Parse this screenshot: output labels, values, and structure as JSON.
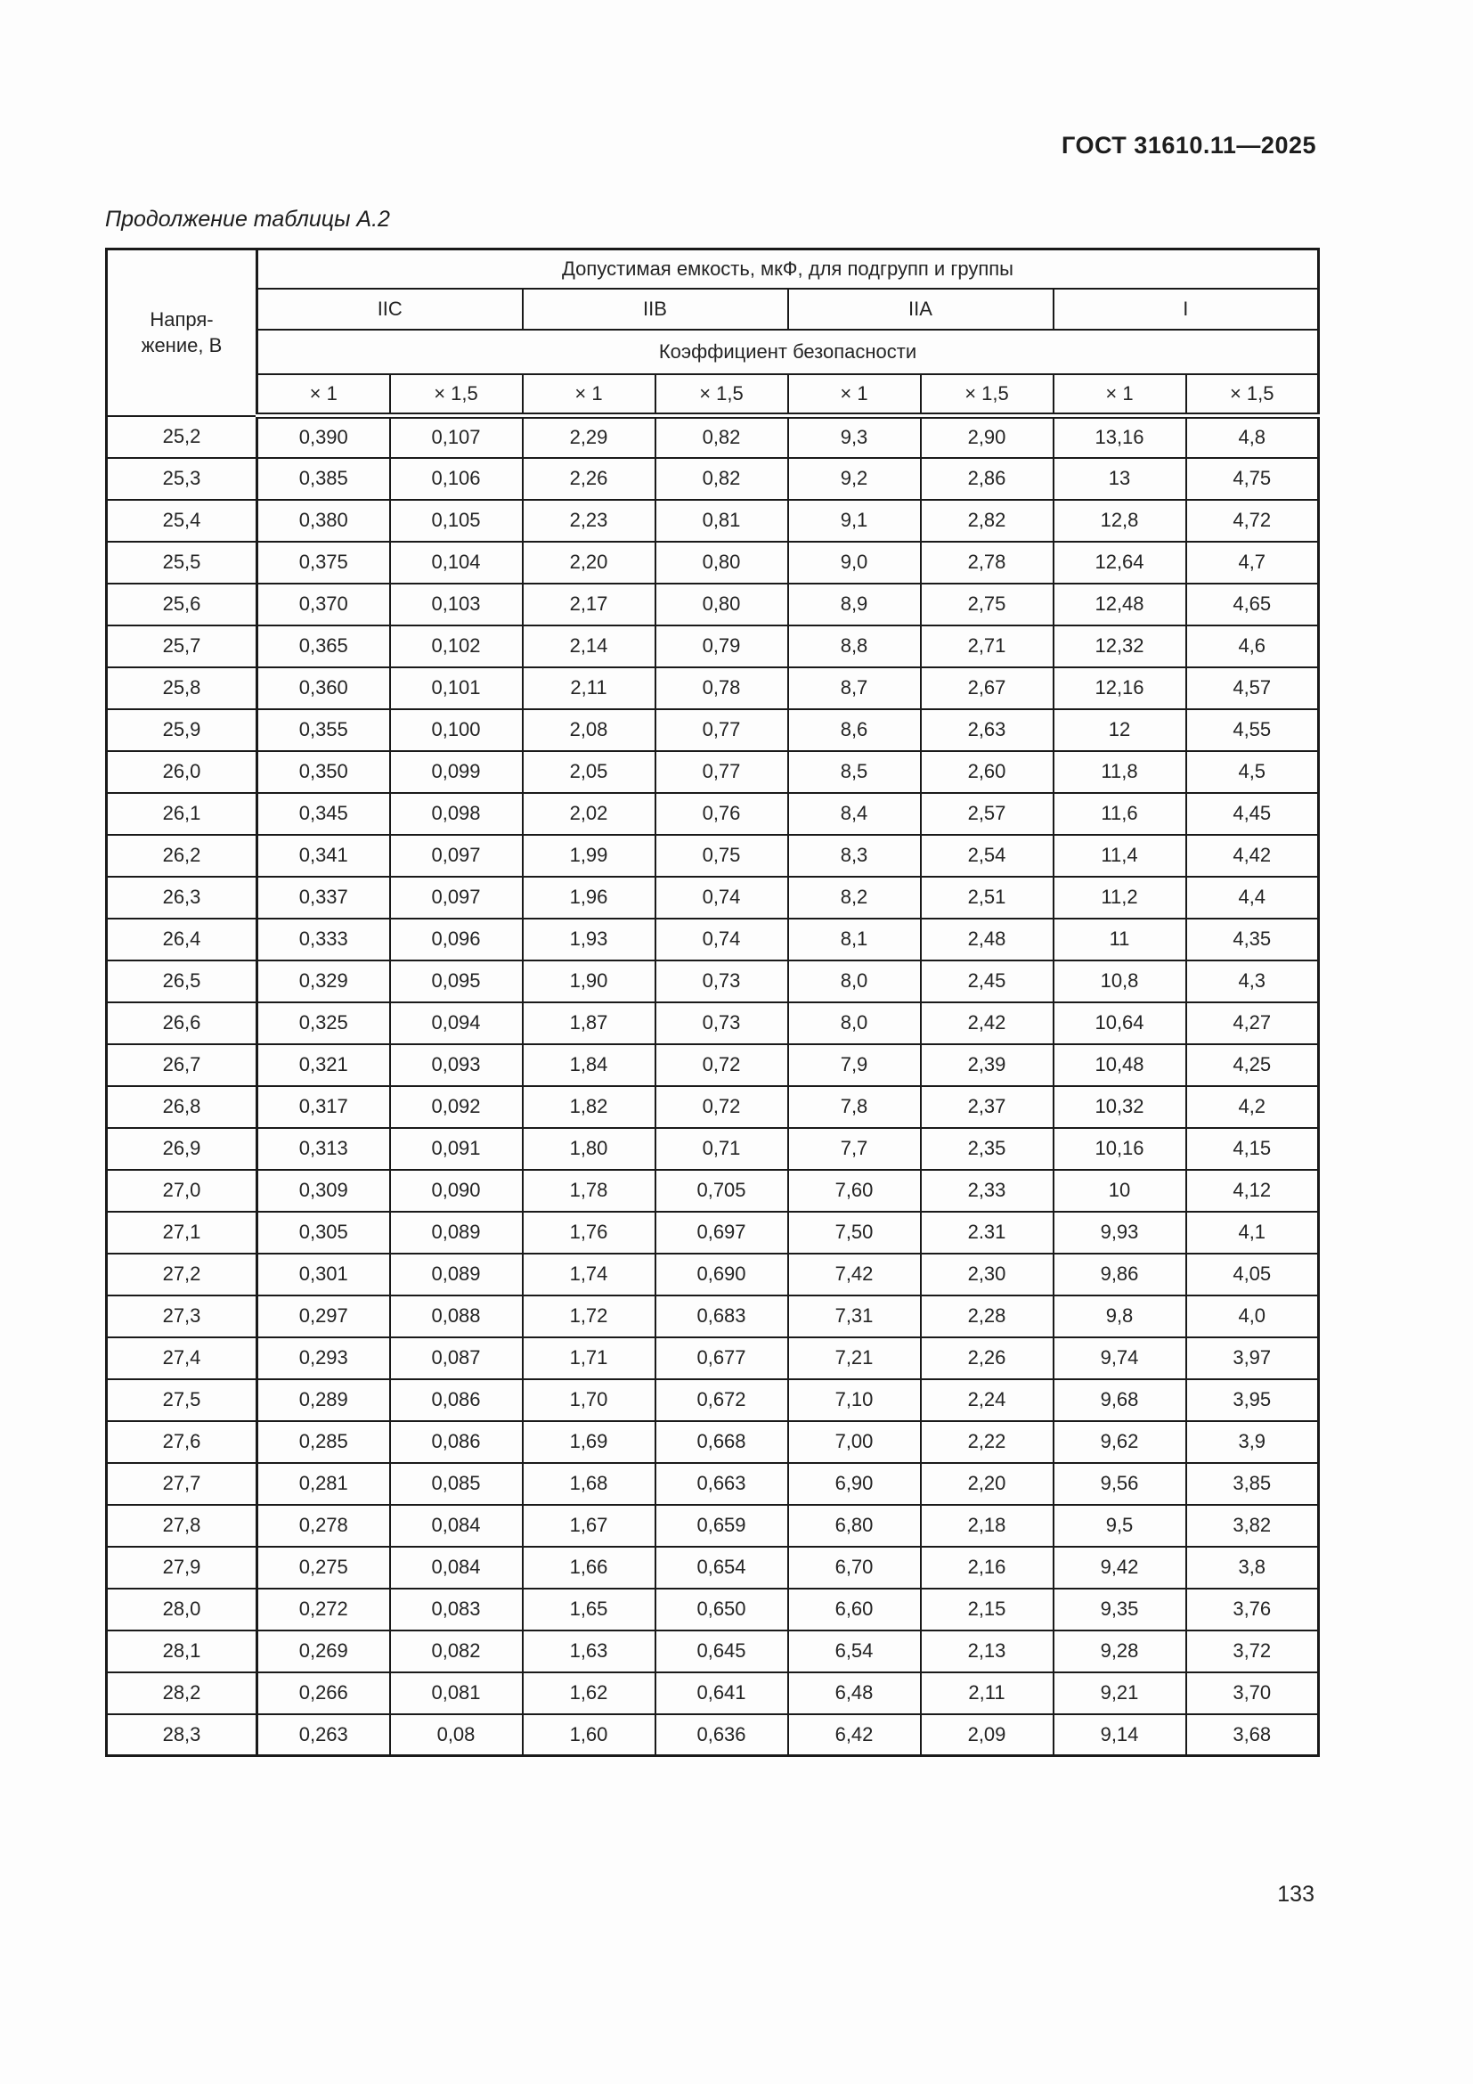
{
  "page": {
    "doc_code": "ГОСТ 31610.11—2025",
    "table_caption": "Продолжение таблицы А.2",
    "page_number": "133"
  },
  "table": {
    "voltage_header_lines": [
      "Напря-",
      "жение, В"
    ],
    "span_header": "Допустимая емкость, мкФ, для подгрупп и группы",
    "groups": [
      "IIC",
      "IIB",
      "IIA",
      "I"
    ],
    "coeff_header": "Коэффициент безопасности",
    "mult_headers": [
      "× 1",
      "× 1,5"
    ],
    "columns": [
      "Напряжение, В",
      "IIC × 1",
      "IIC × 1,5",
      "IIB × 1",
      "IIB × 1,5",
      "IIA × 1",
      "IIA × 1,5",
      "I × 1",
      "I × 1,5"
    ],
    "rows": [
      [
        "25,2",
        "0,390",
        "0,107",
        "2,29",
        "0,82",
        "9,3",
        "2,90",
        "13,16",
        "4,8"
      ],
      [
        "25,3",
        "0,385",
        "0,106",
        "2,26",
        "0,82",
        "9,2",
        "2,86",
        "13",
        "4,75"
      ],
      [
        "25,4",
        "0,380",
        "0,105",
        "2,23",
        "0,81",
        "9,1",
        "2,82",
        "12,8",
        "4,72"
      ],
      [
        "25,5",
        "0,375",
        "0,104",
        "2,20",
        "0,80",
        "9,0",
        "2,78",
        "12,64",
        "4,7"
      ],
      [
        "25,6",
        "0,370",
        "0,103",
        "2,17",
        "0,80",
        "8,9",
        "2,75",
        "12,48",
        "4,65"
      ],
      [
        "25,7",
        "0,365",
        "0,102",
        "2,14",
        "0,79",
        "8,8",
        "2,71",
        "12,32",
        "4,6"
      ],
      [
        "25,8",
        "0,360",
        "0,101",
        "2,11",
        "0,78",
        "8,7",
        "2,67",
        "12,16",
        "4,57"
      ],
      [
        "25,9",
        "0,355",
        "0,100",
        "2,08",
        "0,77",
        "8,6",
        "2,63",
        "12",
        "4,55"
      ],
      [
        "26,0",
        "0,350",
        "0,099",
        "2,05",
        "0,77",
        "8,5",
        "2,60",
        "11,8",
        "4,5"
      ],
      [
        "26,1",
        "0,345",
        "0,098",
        "2,02",
        "0,76",
        "8,4",
        "2,57",
        "11,6",
        "4,45"
      ],
      [
        "26,2",
        "0,341",
        "0,097",
        "1,99",
        "0,75",
        "8,3",
        "2,54",
        "11,4",
        "4,42"
      ],
      [
        "26,3",
        "0,337",
        "0,097",
        "1,96",
        "0,74",
        "8,2",
        "2,51",
        "11,2",
        "4,4"
      ],
      [
        "26,4",
        "0,333",
        "0,096",
        "1,93",
        "0,74",
        "8,1",
        "2,48",
        "11",
        "4,35"
      ],
      [
        "26,5",
        "0,329",
        "0,095",
        "1,90",
        "0,73",
        "8,0",
        "2,45",
        "10,8",
        "4,3"
      ],
      [
        "26,6",
        "0,325",
        "0,094",
        "1,87",
        "0,73",
        "8,0",
        "2,42",
        "10,64",
        "4,27"
      ],
      [
        "26,7",
        "0,321",
        "0,093",
        "1,84",
        "0,72",
        "7,9",
        "2,39",
        "10,48",
        "4,25"
      ],
      [
        "26,8",
        "0,317",
        "0,092",
        "1,82",
        "0,72",
        "7,8",
        "2,37",
        "10,32",
        "4,2"
      ],
      [
        "26,9",
        "0,313",
        "0,091",
        "1,80",
        "0,71",
        "7,7",
        "2,35",
        "10,16",
        "4,15"
      ],
      [
        "27,0",
        "0,309",
        "0,090",
        "1,78",
        "0,705",
        "7,60",
        "2,33",
        "10",
        "4,12"
      ],
      [
        "27,1",
        "0,305",
        "0,089",
        "1,76",
        "0,697",
        "7,50",
        "2.31",
        "9,93",
        "4,1"
      ],
      [
        "27,2",
        "0,301",
        "0,089",
        "1,74",
        "0,690",
        "7,42",
        "2,30",
        "9,86",
        "4,05"
      ],
      [
        "27,3",
        "0,297",
        "0,088",
        "1,72",
        "0,683",
        "7,31",
        "2,28",
        "9,8",
        "4,0"
      ],
      [
        "27,4",
        "0,293",
        "0,087",
        "1,71",
        "0,677",
        "7,21",
        "2,26",
        "9,74",
        "3,97"
      ],
      [
        "27,5",
        "0,289",
        "0,086",
        "1,70",
        "0,672",
        "7,10",
        "2,24",
        "9,68",
        "3,95"
      ],
      [
        "27,6",
        "0,285",
        "0,086",
        "1,69",
        "0,668",
        "7,00",
        "2,22",
        "9,62",
        "3,9"
      ],
      [
        "27,7",
        "0,281",
        "0,085",
        "1,68",
        "0,663",
        "6,90",
        "2,20",
        "9,56",
        "3,85"
      ],
      [
        "27,8",
        "0,278",
        "0,084",
        "1,67",
        "0,659",
        "6,80",
        "2,18",
        "9,5",
        "3,82"
      ],
      [
        "27,9",
        "0,275",
        "0,084",
        "1,66",
        "0,654",
        "6,70",
        "2,16",
        "9,42",
        "3,8"
      ],
      [
        "28,0",
        "0,272",
        "0,083",
        "1,65",
        "0,650",
        "6,60",
        "2,15",
        "9,35",
        "3,76"
      ],
      [
        "28,1",
        "0,269",
        "0,082",
        "1,63",
        "0,645",
        "6,54",
        "2,13",
        "9,28",
        "3,72"
      ],
      [
        "28,2",
        "0,266",
        "0,081",
        "1,62",
        "0,641",
        "6,48",
        "2,11",
        "9,21",
        "3,70"
      ],
      [
        "28,3",
        "0,263",
        "0,08",
        "1,60",
        "0,636",
        "6,42",
        "2,09",
        "9,14",
        "3,68"
      ]
    ]
  }
}
